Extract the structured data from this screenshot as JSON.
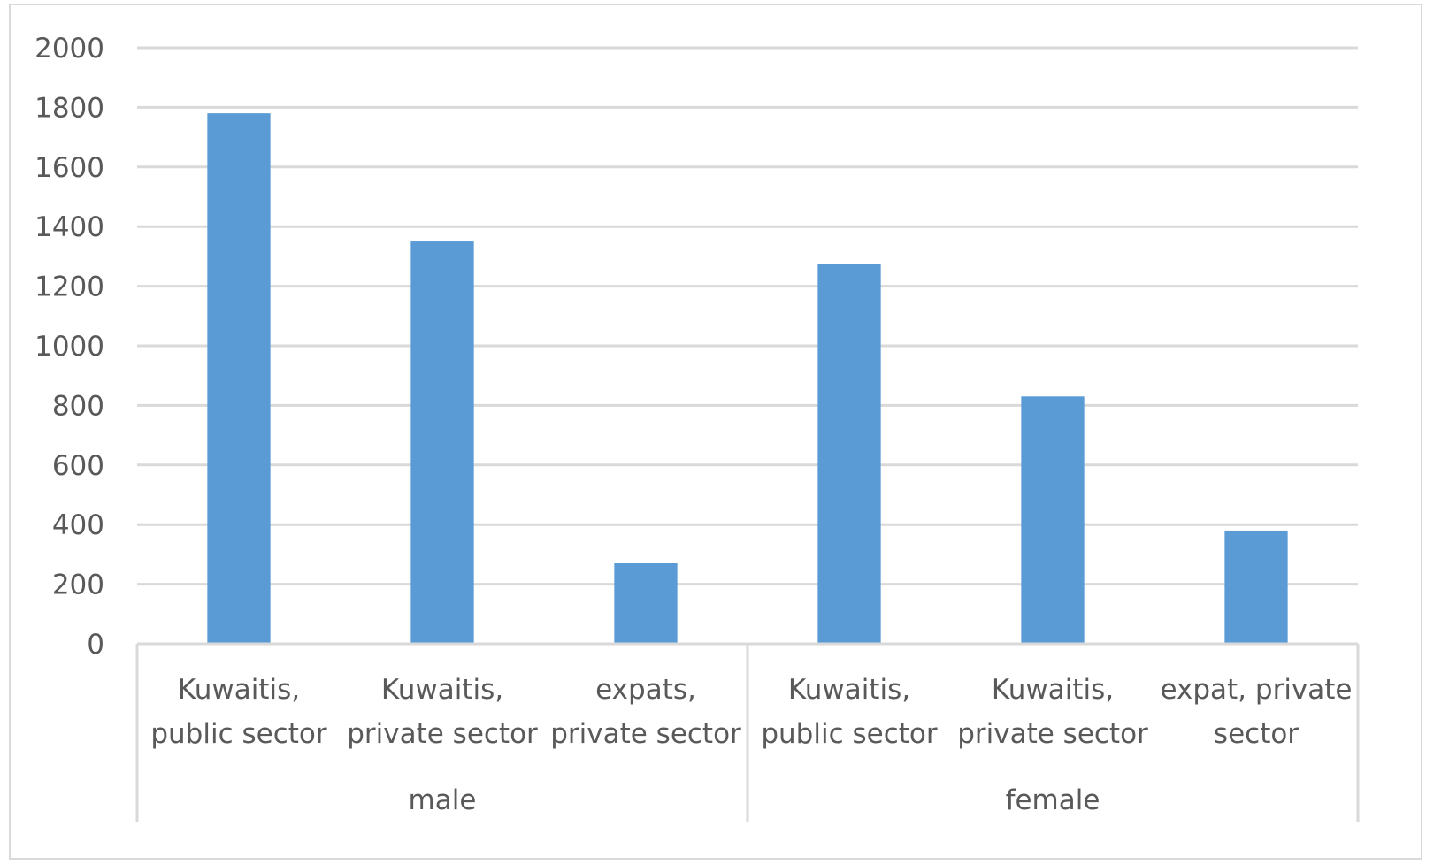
{
  "chart_data": {
    "type": "bar",
    "title": "",
    "xlabel": "",
    "ylabel": "",
    "ylim": [
      0,
      2000
    ],
    "yticks": [
      0,
      200,
      400,
      600,
      800,
      1000,
      1200,
      1400,
      1600,
      1800,
      2000
    ],
    "grid": true,
    "legend": "none",
    "bar_color": "#5b9bd5",
    "groups": [
      {
        "label": "male",
        "categories": [
          [
            "Kuwaitis,",
            "public sector"
          ],
          [
            "Kuwaitis,",
            "private sector"
          ],
          [
            "expats,",
            "private sector"
          ]
        ],
        "values": [
          1780,
          1350,
          270
        ]
      },
      {
        "label": "female",
        "categories": [
          [
            "Kuwaitis,",
            "public sector"
          ],
          [
            "Kuwaitis,",
            "private sector"
          ],
          [
            "expat, private",
            "sector"
          ]
        ],
        "values": [
          1275,
          830,
          380
        ]
      }
    ]
  }
}
